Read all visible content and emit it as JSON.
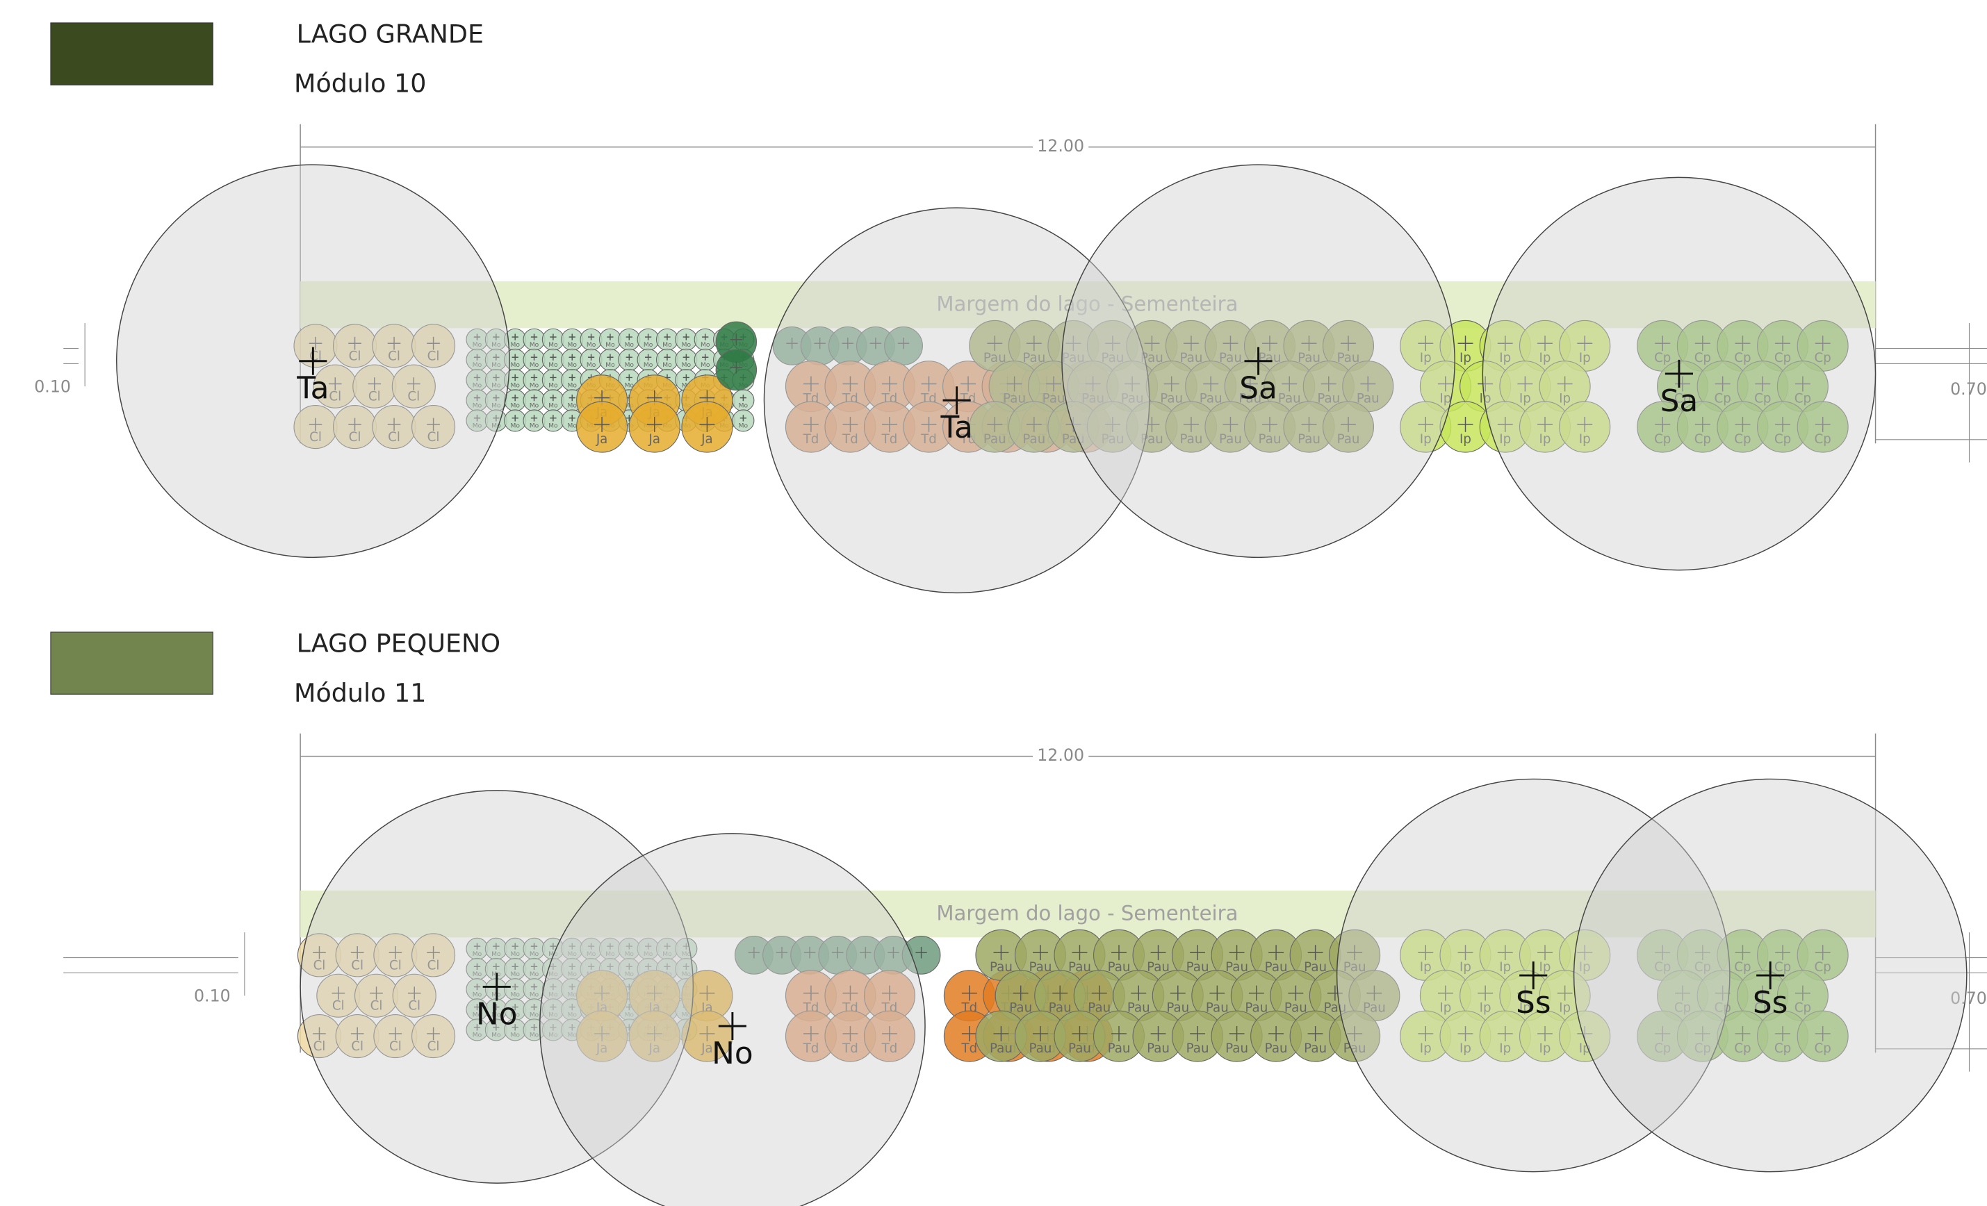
{
  "modules": [
    {
      "title": "LAGO GRANDE",
      "subtitle": "Módulo 10",
      "swatch_color": "#3b4a1f",
      "dimension": "12.00",
      "band_label": "Margem do lago - Sementeira",
      "left_dim": "0.10",
      "right_dim": "0.70",
      "plants": [
        {
          "label": "Cl",
          "color": "#e8d3a0"
        },
        {
          "label": "Mo",
          "color": "#b9d8bc"
        },
        {
          "label": "Ja",
          "color": "#e6ad2e"
        },
        {
          "color": "#2f7a45"
        },
        {
          "color": "#6f9c7e"
        },
        {
          "label": "Td",
          "color": "#df9868"
        },
        {
          "label": "Pau",
          "color": "#9fa963"
        },
        {
          "label": "Ip",
          "color": "#c7e55c"
        },
        {
          "label": "Cp",
          "color": "#8dbd5a"
        }
      ],
      "trees": [
        {
          "label": "Ta"
        },
        {
          "label": "Ta"
        },
        {
          "label": "Sa"
        },
        {
          "label": "Sa"
        }
      ]
    },
    {
      "title": "LAGO PEQUENO",
      "subtitle": "Módulo 11",
      "swatch_color": "#72854f",
      "dimension": "12.00",
      "band_label": "Margem do lago - Sementeira",
      "left_dim": "0.10",
      "right_dim": "0.70",
      "plants": [
        {
          "label": "Cl",
          "color": "#edd7a2"
        },
        {
          "label": "Mo",
          "color": "#b9d8bc"
        },
        {
          "label": "Ja",
          "color": "#e6ad2e"
        },
        {
          "color": "#6f9c7e"
        },
        {
          "label": "Td",
          "color": "#e09460"
        },
        {
          "label": "Td",
          "color": "#e27c22"
        },
        {
          "label": "Pau",
          "color": "#9fa963"
        },
        {
          "label": "Ip",
          "color": "#c7e55c"
        },
        {
          "label": "Cp",
          "color": "#8dbd5a"
        }
      ],
      "trees": [
        {
          "label": "No"
        },
        {
          "label": "No"
        },
        {
          "label": "Ss"
        },
        {
          "label": "Ss"
        }
      ]
    }
  ]
}
